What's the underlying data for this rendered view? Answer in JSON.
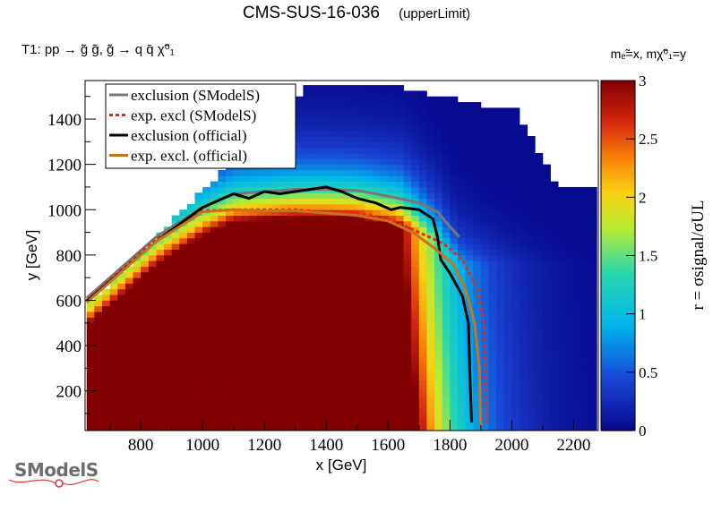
{
  "header": {
    "title": "CMS-SUS-16-036",
    "subtitle": "(upperLimit)",
    "process": "T1: pp → g̃ g̃, g̃ → q q̄ χ̃⁰₁",
    "mass_assignment": "mₑ̃=x, mχ̃⁰₁=y"
  },
  "logo": {
    "text": "SModelS"
  },
  "colors": {
    "exclusion_smodels": "#777777",
    "exp_excl_smodels": "#e8281e",
    "exclusion_official": "#000000",
    "exp_excl_official": "#c8731e",
    "empty_cell": "#ffffff"
  },
  "chart_data": {
    "type": "heatmap",
    "xlabel": "x [GeV]",
    "ylabel": "y [GeV]",
    "zlabel": "r = σsignal/σUL",
    "xlim": [
      620,
      2280
    ],
    "ylim": [
      25,
      1570
    ],
    "zlim": [
      0,
      3
    ],
    "colormap": "rainbow (dark blue 0 → dark red 3)",
    "x_ticks": [
      800,
      1000,
      1200,
      1400,
      1600,
      1800,
      2000,
      2200
    ],
    "y_ticks": [
      200,
      400,
      600,
      800,
      1000,
      1200,
      1400
    ],
    "z_ticks": [
      0,
      0.5,
      1,
      1.5,
      2,
      2.5,
      3
    ],
    "z_tick_labels": [
      "0",
      "0.5",
      "1",
      "1.5",
      "2",
      "2.5",
      "3"
    ],
    "grid": false,
    "legend_position": "top-left",
    "series": [
      {
        "name": "exclusion (SModelS)",
        "style": "solid",
        "x": [
          625,
          850,
          1000,
          1100,
          1200,
          1300,
          1400,
          1500,
          1600,
          1700,
          1760,
          1790,
          1830
        ],
        "y": [
          610,
          880,
          1010,
          1070,
          1080,
          1090,
          1090,
          1085,
          1060,
          1030,
          990,
          940,
          880
        ]
      },
      {
        "name": "exp. excl (SModelS)",
        "style": "dashed",
        "x": [
          625,
          850,
          1000,
          1100,
          1200,
          1300,
          1400,
          1500,
          1600,
          1700,
          1780,
          1840,
          1890,
          1910,
          1915,
          1920
        ],
        "y": [
          600,
          870,
          995,
          1000,
          1000,
          1000,
          990,
          985,
          960,
          900,
          850,
          780,
          650,
          500,
          300,
          50
        ]
      },
      {
        "name": "exclusion (official)",
        "style": "solid",
        "x": [
          625,
          850,
          1000,
          1050,
          1100,
          1150,
          1200,
          1250,
          1300,
          1350,
          1400,
          1450,
          1500,
          1560,
          1610,
          1640,
          1700,
          1745,
          1760,
          1770,
          1800,
          1840,
          1860,
          1865,
          1870
        ],
        "y": [
          595,
          860,
          1010,
          1040,
          1070,
          1050,
          1080,
          1070,
          1080,
          1090,
          1100,
          1080,
          1050,
          1030,
          1000,
          1010,
          1000,
          960,
          880,
          780,
          720,
          620,
          500,
          250,
          60
        ]
      },
      {
        "name": "exp. excl. (official)",
        "style": "solid",
        "x": [
          625,
          850,
          1000,
          1100,
          1200,
          1300,
          1400,
          1500,
          1600,
          1680,
          1750,
          1810,
          1850,
          1880,
          1895,
          1900
        ],
        "y": [
          590,
          860,
          990,
          1000,
          995,
          995,
          985,
          975,
          950,
          900,
          830,
          760,
          650,
          500,
          300,
          40
        ]
      }
    ]
  }
}
